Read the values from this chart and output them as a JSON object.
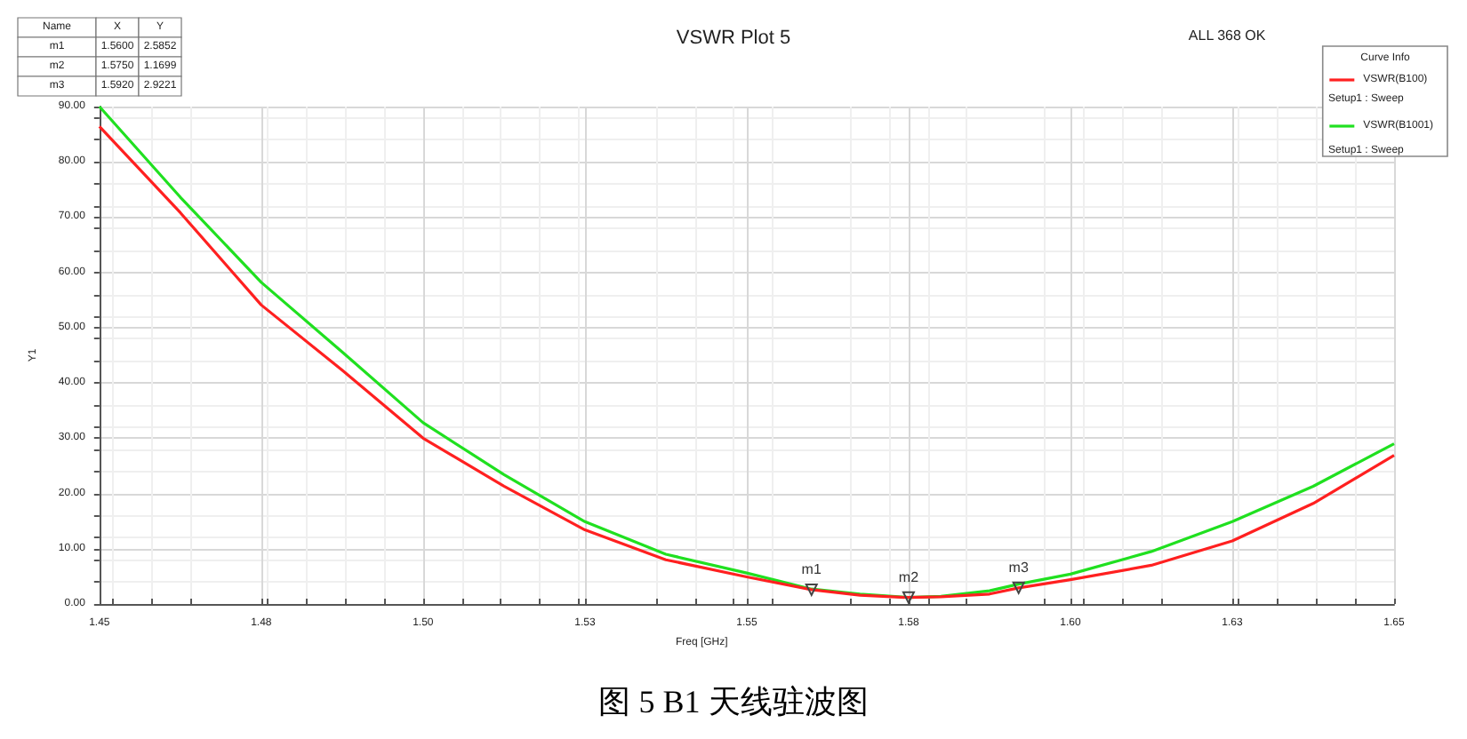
{
  "chart_data": {
    "type": "line",
    "title": "VSWR Plot 5",
    "xlabel": "Freq [GHz]",
    "ylabel": "Y1",
    "legend_title": "Curve Info",
    "legend": "top right",
    "grid": true,
    "marker": "none",
    "line_style": "solid",
    "xlim": [
      1.45,
      1.65
    ],
    "xticks": [
      1.45,
      {
        "value": 1.475,
        "label": "1.48"
      },
      {
        "value": 1.5,
        "label": "1.50"
      },
      {
        "value": 1.525,
        "label": "1.53"
      },
      {
        "value": 1.55,
        "label": "1.55"
      },
      {
        "value": 1.575,
        "label": "1.58"
      },
      {
        "value": 1.6,
        "label": "1.60"
      },
      {
        "value": 1.625,
        "label": "1.63"
      },
      {
        "value": 1.65,
        "label": "1.65"
      }
    ],
    "ylim": [
      0,
      90
    ],
    "yticks": [
      {
        "value": 0,
        "label": "0.00"
      },
      {
        "value": 10,
        "label": "10.00"
      },
      {
        "value": 20,
        "label": "20.00"
      },
      {
        "value": 30,
        "label": "30.00"
      },
      {
        "value": 40,
        "label": "40.00"
      },
      {
        "value": 50,
        "label": "50.00"
      },
      {
        "value": 60,
        "label": "60.00"
      },
      {
        "value": 70,
        "label": "70.00"
      },
      {
        "value": 80,
        "label": "80.00"
      },
      {
        "value": 90,
        "label": "90.00"
      }
    ],
    "series": [
      {
        "name": "VSWR(B100)",
        "color": "#ff2020",
        "x": [
          1.45,
          1.4625,
          1.475,
          1.4875,
          1.5,
          1.5125,
          1.525,
          1.5375,
          1.55,
          1.56,
          1.5675,
          1.575,
          1.58,
          1.5875,
          1.592,
          1.6,
          1.6125,
          1.625,
          1.6375,
          1.65
        ],
        "values": [
          86.4,
          70.8,
          54.1,
          42.3,
          30.0,
          21.3,
          13.4,
          8.0,
          4.9,
          2.5852,
          1.6,
          1.1699,
          1.3,
          1.8,
          2.9221,
          4.4,
          7.0,
          11.4,
          18.2,
          26.9
        ]
      },
      {
        "name": "VSWR(B1001)",
        "color": "#20e020",
        "x": [
          1.45,
          1.4625,
          1.475,
          1.4875,
          1.5,
          1.5125,
          1.525,
          1.5375,
          1.55,
          1.56,
          1.5675,
          1.575,
          1.58,
          1.5875,
          1.592,
          1.6,
          1.6125,
          1.625,
          1.6375,
          1.65
        ],
        "values": [
          90.0,
          73.6,
          58.2,
          45.6,
          32.8,
          23.4,
          14.9,
          9.0,
          5.6,
          2.7,
          1.8,
          1.2,
          1.4,
          2.4,
          3.6,
          5.4,
          9.5,
          14.9,
          21.3,
          29.0
        ]
      }
    ],
    "annotations": [
      "Name",
      "X",
      "Y",
      "m1",
      "1.5600",
      "2.5852",
      "m2",
      "1.5750",
      "1.1699",
      "m3",
      "1.5920",
      "2.9221",
      "ALL 368 OK",
      "Setup1 : Sweep",
      "Setup1 : Sweep",
      "图 5 B1 天线驻波图",
      {
        "text": "m1",
        "x": 1.56,
        "y": 2.5852
      },
      {
        "text": "m2",
        "x": 1.575,
        "y": 1.1699
      },
      {
        "text": "m3",
        "x": 1.592,
        "y": 2.9221
      }
    ]
  }
}
